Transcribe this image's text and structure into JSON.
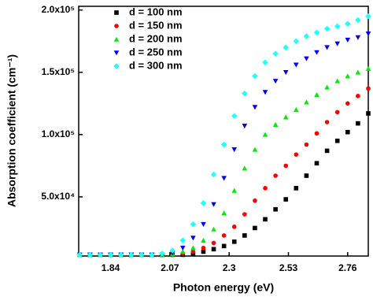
{
  "chart_data": {
    "type": "scatter",
    "x_label": "Photon energy (eV)",
    "y_label": "Absorption coefficient (cm⁻¹)",
    "x": [
      1.72,
      1.76,
      1.8,
      1.84,
      1.88,
      1.92,
      1.96,
      2.0,
      2.04,
      2.08,
      2.12,
      2.16,
      2.2,
      2.24,
      2.28,
      2.32,
      2.36,
      2.4,
      2.44,
      2.48,
      2.52,
      2.56,
      2.6,
      2.64,
      2.68,
      2.72,
      2.76,
      2.8,
      2.84
    ],
    "series": [
      {
        "name": "d = 100 nm",
        "color": "#000000",
        "marker": "square",
        "values": [
          3500,
          3500,
          3500,
          3500,
          3500,
          3500,
          3500,
          3500,
          3500,
          3500,
          3500,
          4500,
          6000,
          8000,
          10500,
          14000,
          19000,
          25000,
          32000,
          40000,
          48000,
          57000,
          67000,
          77000,
          87000,
          95000,
          102000,
          109000,
          117000
        ]
      },
      {
        "name": "d = 150 nm",
        "color": "#ff0000",
        "marker": "circle",
        "values": [
          3500,
          3500,
          3500,
          3500,
          3500,
          3500,
          3500,
          3500,
          3500,
          3500,
          4500,
          6000,
          9000,
          13000,
          19000,
          26000,
          36000,
          47000,
          57000,
          67000,
          75000,
          84000,
          92000,
          101000,
          110000,
          118000,
          125000,
          131000,
          137000
        ]
      },
      {
        "name": "d = 200 nm",
        "color": "#00ee00",
        "marker": "triangle-up",
        "values": [
          3500,
          3500,
          3500,
          3500,
          3500,
          3500,
          3500,
          3500,
          3500,
          4000,
          6000,
          9000,
          15000,
          24000,
          37000,
          55000,
          73000,
          88000,
          100000,
          108000,
          114000,
          120000,
          126000,
          132000,
          138000,
          143000,
          147000,
          150000,
          153000
        ]
      },
      {
        "name": "d = 250 nm",
        "color": "#0000ff",
        "marker": "triangle-down",
        "values": [
          3500,
          3500,
          3500,
          3500,
          3500,
          3500,
          3500,
          3500,
          3500,
          5000,
          9000,
          17000,
          28000,
          44000,
          65000,
          88000,
          107000,
          122000,
          134000,
          143000,
          150000,
          156000,
          161000,
          166000,
          170000,
          173000,
          176000,
          178000,
          181000
        ]
      },
      {
        "name": "d = 300 nm",
        "color": "#22ffff",
        "marker": "diamond",
        "values": [
          3500,
          3500,
          3500,
          3500,
          3500,
          3500,
          3500,
          3500,
          4500,
          7000,
          15000,
          28000,
          45000,
          68000,
          92000,
          115000,
          133000,
          147000,
          158000,
          165000,
          170000,
          175000,
          179000,
          182000,
          185000,
          187000,
          189000,
          192000,
          195000
        ]
      }
    ],
    "xlim": [
      1.716,
      2.84
    ],
    "ylim": [
      2500,
      203000
    ],
    "xticks": [
      1.84,
      2.07,
      2.3,
      2.53,
      2.76
    ],
    "yticks": [
      {
        "value": 50000,
        "label": "5.0x10⁴"
      },
      {
        "value": 100000,
        "label": "1.0x10⁵"
      },
      {
        "value": 150000,
        "label": "1.5x10⁵"
      },
      {
        "value": 200000,
        "label": "2.0x10⁵"
      }
    ],
    "legend": "upper left"
  }
}
